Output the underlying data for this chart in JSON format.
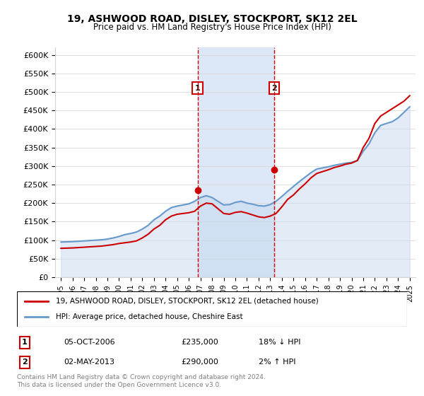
{
  "title": "19, ASHWOOD ROAD, DISLEY, STOCKPORT, SK12 2EL",
  "subtitle": "Price paid vs. HM Land Registry's House Price Index (HPI)",
  "legend_line1": "19, ASHWOOD ROAD, DISLEY, STOCKPORT, SK12 2EL (detached house)",
  "legend_line2": "HPI: Average price, detached house, Cheshire East",
  "footnote": "Contains HM Land Registry data © Crown copyright and database right 2024.\nThis data is licensed under the Open Government Licence v3.0.",
  "transaction1": {
    "label": "1",
    "date": "05-OCT-2006",
    "price": "£235,000",
    "hpi": "18% ↓ HPI",
    "year": 2006.75
  },
  "transaction2": {
    "label": "2",
    "date": "02-MAY-2013",
    "price": "£290,000",
    "hpi": "2% ↑ HPI",
    "year": 2013.33
  },
  "price_paid_color": "#cc0000",
  "hpi_color": "#6699cc",
  "hpi_fill_color": "#c8d8f0",
  "marker_color": "#cc0000",
  "dashed_color": "#cc0000",
  "shade_color": "#dce8f8",
  "ylim": [
    0,
    620000
  ],
  "yticks": [
    0,
    50000,
    100000,
    150000,
    200000,
    250000,
    300000,
    350000,
    400000,
    450000,
    500000,
    550000,
    600000
  ],
  "xlim_start": 1994.5,
  "xlim_end": 2025.5,
  "hpi_data": {
    "years": [
      1995,
      1995.5,
      1996,
      1996.5,
      1997,
      1997.5,
      1998,
      1998.5,
      1999,
      1999.5,
      2000,
      2000.5,
      2001,
      2001.5,
      2002,
      2002.5,
      2003,
      2003.5,
      2004,
      2004.5,
      2005,
      2005.5,
      2006,
      2006.5,
      2007,
      2007.5,
      2008,
      2008.5,
      2009,
      2009.5,
      2010,
      2010.5,
      2011,
      2011.5,
      2012,
      2012.5,
      2013,
      2013.5,
      2014,
      2014.5,
      2015,
      2015.5,
      2016,
      2016.5,
      2017,
      2017.5,
      2018,
      2018.5,
      2019,
      2019.5,
      2020,
      2020.5,
      2021,
      2021.5,
      2022,
      2022.5,
      2023,
      2023.5,
      2024,
      2024.5,
      2025
    ],
    "values": [
      95000,
      95500,
      96000,
      97000,
      98000,
      99000,
      100000,
      101000,
      103000,
      106000,
      110000,
      115000,
      118000,
      122000,
      130000,
      140000,
      155000,
      165000,
      178000,
      188000,
      192000,
      195000,
      198000,
      205000,
      215000,
      220000,
      215000,
      205000,
      195000,
      196000,
      202000,
      205000,
      200000,
      197000,
      193000,
      192000,
      196000,
      205000,
      218000,
      232000,
      245000,
      258000,
      270000,
      282000,
      292000,
      295000,
      298000,
      302000,
      305000,
      308000,
      310000,
      315000,
      340000,
      360000,
      390000,
      410000,
      415000,
      420000,
      430000,
      445000,
      460000
    ]
  },
  "price_paid_data": {
    "years": [
      1995,
      1995.5,
      1996,
      1996.5,
      1997,
      1997.5,
      1998,
      1998.5,
      1999,
      1999.5,
      2000,
      2000.5,
      2001,
      2001.5,
      2002,
      2002.5,
      2003,
      2003.5,
      2004,
      2004.5,
      2005,
      2005.5,
      2006,
      2006.5,
      2007,
      2007.5,
      2008,
      2008.5,
      2009,
      2009.5,
      2010,
      2010.5,
      2011,
      2011.5,
      2012,
      2012.5,
      2013,
      2013.5,
      2014,
      2014.5,
      2015,
      2015.5,
      2016,
      2016.5,
      2017,
      2017.5,
      2018,
      2018.5,
      2019,
      2019.5,
      2020,
      2020.5,
      2021,
      2021.5,
      2022,
      2022.5,
      2023,
      2023.5,
      2024,
      2024.5,
      2025
    ],
    "values": [
      78000,
      78500,
      79000,
      80000,
      81000,
      82000,
      83000,
      84000,
      86000,
      88000,
      91000,
      93000,
      95000,
      98000,
      106000,
      116000,
      130000,
      140000,
      155000,
      165000,
      170000,
      172000,
      174000,
      178000,
      192000,
      200000,
      198000,
      185000,
      172000,
      170000,
      175000,
      177000,
      173000,
      168000,
      163000,
      161000,
      165000,
      172000,
      190000,
      210000,
      222000,
      238000,
      252000,
      268000,
      280000,
      285000,
      290000,
      296000,
      300000,
      305000,
      308000,
      315000,
      350000,
      375000,
      415000,
      435000,
      445000,
      455000,
      465000,
      475000,
      490000
    ]
  }
}
